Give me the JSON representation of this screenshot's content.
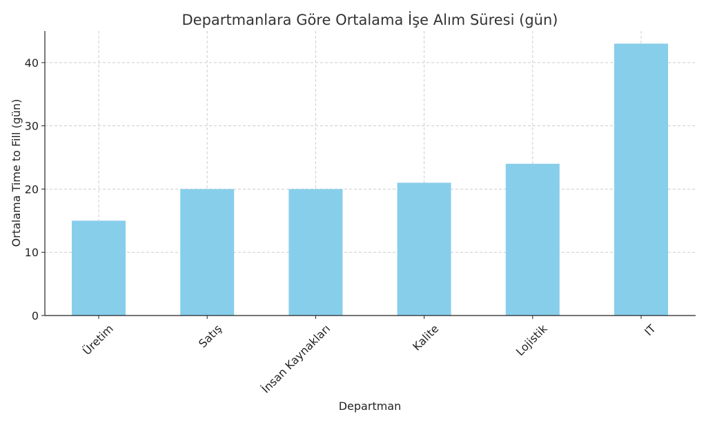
{
  "chart_data": {
    "type": "bar",
    "title": "Departmanlara Göre Ortalama İşe Alım Süresi (gün)",
    "xlabel": "Departman",
    "ylabel": "Ortalama Time to Fill (gün)",
    "categories": [
      "Üretim",
      "Satış",
      "İnsan Kaynakları",
      "Kalite",
      "Lojistik",
      "IT"
    ],
    "values": [
      15,
      20,
      20,
      21,
      24,
      43
    ],
    "ylim": [
      0,
      45
    ],
    "yticks": [
      0,
      10,
      20,
      30,
      40
    ],
    "grid": true,
    "bar_color": "#87CEEB",
    "x_tick_rotation": -45
  }
}
